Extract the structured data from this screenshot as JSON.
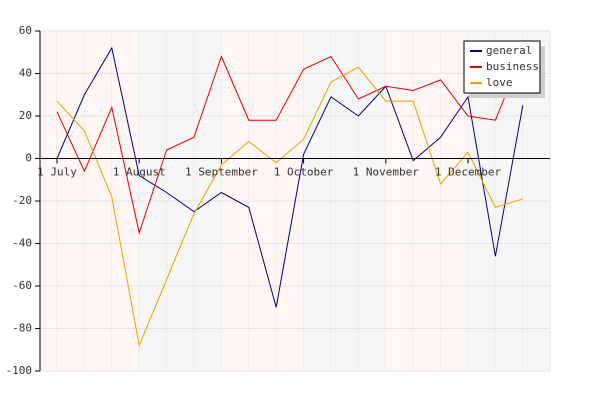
{
  "chart_data": {
    "type": "line",
    "categories": [
      "1 July",
      null,
      null,
      "1 August",
      null,
      null,
      "1 September",
      null,
      null,
      "1 October",
      null,
      null,
      "1 November",
      null,
      null,
      "1 December",
      null,
      null
    ],
    "series": [
      {
        "name": "general",
        "color": "#000080",
        "values": [
          0,
          30,
          52,
          -8,
          -16,
          -25,
          -16,
          -23,
          -70,
          2,
          29,
          20,
          34,
          -1,
          10,
          29,
          -46,
          25
        ]
      },
      {
        "name": "business",
        "color": "#e00000",
        "values": [
          22,
          -6,
          24,
          -35,
          4,
          10,
          48,
          18,
          18,
          42,
          48,
          28,
          34,
          32,
          37,
          20,
          18,
          50
        ]
      },
      {
        "name": "love",
        "color": "#f0a000",
        "values": [
          27,
          13,
          -18,
          -88,
          -57,
          -26,
          -3,
          8,
          -2,
          9,
          36,
          43,
          27,
          27,
          -12,
          3,
          -23,
          -19
        ]
      }
    ],
    "ylim": [
      -100,
      60
    ],
    "yticks": [
      -100,
      -80,
      -60,
      -40,
      -20,
      0,
      20,
      40,
      60
    ],
    "grid": true,
    "legend": "top-right"
  }
}
